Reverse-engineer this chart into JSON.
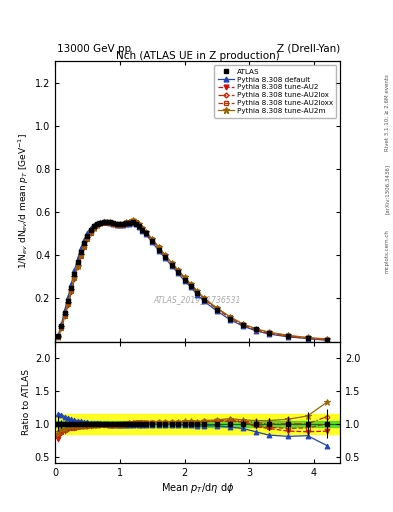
{
  "title_top_left": "13000 GeV pp",
  "title_top_right": "Z (Drell-Yan)",
  "plot_title": "Nch (ATLAS UE in Z production)",
  "xlabel": "Mean $p_{T}$/d$\\eta$ d$\\phi$",
  "ylabel_main": "1/N$_{ev}$ dN$_{ev}$/d mean $p_{T}$ [GeV$^{-1}$]",
  "ylabel_ratio": "Ratio to ATLAS",
  "watermark": "ATLAS_2019_I1736531",
  "right_label_top": "Rivet 3.1.10; ≥ 2.6M events",
  "right_label_mid": "[arXiv:1306.3436]",
  "right_label_bot": "mcplots.cern.ch",
  "xlim": [
    0.0,
    4.4
  ],
  "ylim_main": [
    0.0,
    1.3
  ],
  "ylim_ratio": [
    0.4,
    2.25
  ],
  "ratio_yticks": [
    0.5,
    1.0,
    1.5,
    2.0
  ],
  "main_yticks": [
    0.2,
    0.4,
    0.6,
    0.8,
    1.0,
    1.2
  ],
  "xticks": [
    0,
    1,
    2,
    3,
    4
  ],
  "green_band": 0.05,
  "yellow_band": 0.15,
  "atlas_x": [
    0.05,
    0.1,
    0.15,
    0.2,
    0.25,
    0.3,
    0.35,
    0.4,
    0.45,
    0.5,
    0.55,
    0.6,
    0.65,
    0.7,
    0.75,
    0.8,
    0.85,
    0.9,
    0.95,
    1.0,
    1.05,
    1.1,
    1.15,
    1.2,
    1.25,
    1.3,
    1.35,
    1.4,
    1.5,
    1.6,
    1.7,
    1.8,
    1.9,
    2.0,
    2.1,
    2.2,
    2.3,
    2.5,
    2.7,
    2.9,
    3.1,
    3.3,
    3.6,
    3.9,
    4.2
  ],
  "atlas_y": [
    0.026,
    0.072,
    0.132,
    0.188,
    0.248,
    0.312,
    0.367,
    0.417,
    0.457,
    0.492,
    0.517,
    0.537,
    0.547,
    0.552,
    0.557,
    0.557,
    0.557,
    0.552,
    0.547,
    0.547,
    0.547,
    0.552,
    0.552,
    0.557,
    0.547,
    0.537,
    0.517,
    0.502,
    0.467,
    0.427,
    0.392,
    0.357,
    0.322,
    0.287,
    0.257,
    0.227,
    0.192,
    0.147,
    0.107,
    0.077,
    0.057,
    0.042,
    0.027,
    0.017,
    0.009
  ],
  "atlas_yerr": [
    0.003,
    0.004,
    0.005,
    0.005,
    0.005,
    0.005,
    0.005,
    0.005,
    0.005,
    0.005,
    0.005,
    0.005,
    0.005,
    0.005,
    0.005,
    0.005,
    0.005,
    0.005,
    0.005,
    0.005,
    0.005,
    0.005,
    0.005,
    0.005,
    0.005,
    0.005,
    0.005,
    0.005,
    0.005,
    0.005,
    0.005,
    0.005,
    0.005,
    0.005,
    0.005,
    0.005,
    0.005,
    0.005,
    0.005,
    0.005,
    0.004,
    0.004,
    0.003,
    0.003,
    0.002
  ],
  "series": [
    {
      "label": "Pythia 8.308 default",
      "color": "#2244bb",
      "linestyle": "-",
      "marker": "^",
      "markersize": 3.5,
      "filled": true,
      "x": [
        0.05,
        0.1,
        0.15,
        0.2,
        0.25,
        0.3,
        0.35,
        0.4,
        0.45,
        0.5,
        0.55,
        0.6,
        0.65,
        0.7,
        0.75,
        0.8,
        0.85,
        0.9,
        0.95,
        1.0,
        1.05,
        1.1,
        1.15,
        1.2,
        1.25,
        1.3,
        1.35,
        1.4,
        1.5,
        1.6,
        1.7,
        1.8,
        1.9,
        2.0,
        2.1,
        2.2,
        2.3,
        2.5,
        2.7,
        2.9,
        3.1,
        3.3,
        3.6,
        3.9,
        4.2
      ],
      "y": [
        0.03,
        0.082,
        0.145,
        0.205,
        0.265,
        0.33,
        0.385,
        0.435,
        0.472,
        0.505,
        0.528,
        0.542,
        0.552,
        0.557,
        0.558,
        0.557,
        0.552,
        0.547,
        0.542,
        0.542,
        0.542,
        0.547,
        0.547,
        0.552,
        0.547,
        0.532,
        0.512,
        0.497,
        0.462,
        0.422,
        0.387,
        0.352,
        0.317,
        0.282,
        0.252,
        0.217,
        0.187,
        0.142,
        0.102,
        0.072,
        0.05,
        0.035,
        0.022,
        0.014,
        0.006
      ],
      "ratio": [
        1.15,
        1.14,
        1.11,
        1.09,
        1.07,
        1.06,
        1.05,
        1.04,
        1.03,
        1.03,
        1.02,
        1.01,
        1.01,
        1.01,
        1.0,
        1.0,
        0.99,
        0.99,
        0.99,
        0.99,
        0.99,
        0.99,
        0.99,
        0.99,
        1.0,
        0.99,
        0.99,
        0.99,
        0.99,
        0.99,
        0.99,
        0.99,
        0.98,
        0.98,
        0.98,
        0.96,
        0.97,
        0.97,
        0.95,
        0.93,
        0.88,
        0.83,
        0.81,
        0.82,
        0.67
      ]
    },
    {
      "label": "Pythia 8.308 tune-AU2",
      "color": "#cc1111",
      "linestyle": "--",
      "marker": "v",
      "markersize": 3.5,
      "filled": true,
      "x": [
        0.05,
        0.1,
        0.15,
        0.2,
        0.25,
        0.3,
        0.35,
        0.4,
        0.45,
        0.5,
        0.55,
        0.6,
        0.65,
        0.7,
        0.75,
        0.8,
        0.85,
        0.9,
        0.95,
        1.0,
        1.05,
        1.1,
        1.15,
        1.2,
        1.25,
        1.3,
        1.35,
        1.4,
        1.5,
        1.6,
        1.7,
        1.8,
        1.9,
        2.0,
        2.1,
        2.2,
        2.3,
        2.5,
        2.7,
        2.9,
        3.1,
        3.3,
        3.6,
        3.9,
        4.2
      ],
      "y": [
        0.02,
        0.062,
        0.118,
        0.172,
        0.232,
        0.292,
        0.348,
        0.398,
        0.438,
        0.474,
        0.503,
        0.524,
        0.538,
        0.547,
        0.551,
        0.551,
        0.548,
        0.544,
        0.54,
        0.54,
        0.542,
        0.548,
        0.552,
        0.558,
        0.552,
        0.54,
        0.522,
        0.505,
        0.472,
        0.434,
        0.397,
        0.361,
        0.327,
        0.294,
        0.261,
        0.229,
        0.197,
        0.151,
        0.111,
        0.077,
        0.055,
        0.039,
        0.024,
        0.015,
        0.008
      ],
      "ratio": [
        0.77,
        0.86,
        0.89,
        0.92,
        0.94,
        0.94,
        0.95,
        0.96,
        0.96,
        0.97,
        0.97,
        0.98,
        0.99,
        0.99,
        0.99,
        0.99,
        0.98,
        0.99,
        0.99,
        0.99,
        0.99,
        1.0,
        1.0,
        1.0,
        1.01,
        1.01,
        1.01,
        1.01,
        1.01,
        1.02,
        1.02,
        1.01,
        1.02,
        1.02,
        1.02,
        1.01,
        1.03,
        1.04,
        1.04,
        1.03,
        0.96,
        0.93,
        0.89,
        0.88,
        0.89
      ]
    },
    {
      "label": "Pythia 8.308 tune-AU2lox",
      "color": "#cc2200",
      "linestyle": "-.",
      "marker": "D",
      "markersize": 2.5,
      "filled": false,
      "x": [
        0.05,
        0.1,
        0.15,
        0.2,
        0.25,
        0.3,
        0.35,
        0.4,
        0.45,
        0.5,
        0.55,
        0.6,
        0.65,
        0.7,
        0.75,
        0.8,
        0.85,
        0.9,
        0.95,
        1.0,
        1.05,
        1.1,
        1.15,
        1.2,
        1.25,
        1.3,
        1.35,
        1.4,
        1.5,
        1.6,
        1.7,
        1.8,
        1.9,
        2.0,
        2.1,
        2.2,
        2.3,
        2.5,
        2.7,
        2.9,
        3.1,
        3.3,
        3.6,
        3.9,
        4.2
      ],
      "y": [
        0.022,
        0.064,
        0.12,
        0.175,
        0.235,
        0.295,
        0.351,
        0.401,
        0.441,
        0.477,
        0.506,
        0.527,
        0.541,
        0.55,
        0.554,
        0.554,
        0.551,
        0.547,
        0.543,
        0.543,
        0.545,
        0.551,
        0.555,
        0.561,
        0.555,
        0.543,
        0.525,
        0.508,
        0.475,
        0.437,
        0.4,
        0.364,
        0.33,
        0.297,
        0.264,
        0.232,
        0.2,
        0.154,
        0.114,
        0.08,
        0.058,
        0.042,
        0.027,
        0.017,
        0.01
      ],
      "ratio": [
        0.85,
        0.89,
        0.91,
        0.93,
        0.95,
        0.95,
        0.96,
        0.96,
        0.97,
        0.97,
        0.98,
        0.98,
        0.99,
        1.0,
        1.0,
        1.0,
        0.99,
        0.99,
        0.99,
        0.99,
        1.0,
        1.0,
        1.01,
        1.01,
        1.01,
        1.01,
        1.02,
        1.01,
        1.02,
        1.02,
        1.02,
        1.02,
        1.02,
        1.03,
        1.03,
        1.02,
        1.04,
        1.05,
        1.07,
        1.04,
        1.02,
        1.0,
        1.0,
        1.0,
        1.11
      ]
    },
    {
      "label": "Pythia 8.308 tune-AU2loxx",
      "color": "#bb3300",
      "linestyle": "--",
      "marker": "s",
      "markersize": 2.5,
      "filled": false,
      "x": [
        0.05,
        0.1,
        0.15,
        0.2,
        0.25,
        0.3,
        0.35,
        0.4,
        0.45,
        0.5,
        0.55,
        0.6,
        0.65,
        0.7,
        0.75,
        0.8,
        0.85,
        0.9,
        0.95,
        1.0,
        1.05,
        1.1,
        1.15,
        1.2,
        1.25,
        1.3,
        1.35,
        1.4,
        1.5,
        1.6,
        1.7,
        1.8,
        1.9,
        2.0,
        2.1,
        2.2,
        2.3,
        2.5,
        2.7,
        2.9,
        3.1,
        3.3,
        3.6,
        3.9,
        4.2
      ],
      "y": [
        0.021,
        0.063,
        0.119,
        0.174,
        0.234,
        0.294,
        0.349,
        0.399,
        0.439,
        0.475,
        0.504,
        0.525,
        0.539,
        0.548,
        0.552,
        0.552,
        0.549,
        0.545,
        0.541,
        0.541,
        0.543,
        0.549,
        0.553,
        0.559,
        0.553,
        0.541,
        0.523,
        0.506,
        0.473,
        0.435,
        0.398,
        0.362,
        0.328,
        0.295,
        0.262,
        0.23,
        0.198,
        0.152,
        0.112,
        0.078,
        0.056,
        0.04,
        0.025,
        0.016,
        0.009
      ],
      "ratio": [
        0.81,
        0.88,
        0.9,
        0.93,
        0.94,
        0.94,
        0.95,
        0.96,
        0.96,
        0.97,
        0.98,
        0.98,
        0.99,
        1.0,
        0.99,
        0.99,
        0.99,
        0.99,
        0.99,
        0.99,
        0.99,
        1.0,
        1.0,
        1.0,
        1.01,
        1.01,
        1.01,
        1.01,
        1.01,
        1.02,
        1.02,
        1.02,
        1.02,
        1.03,
        1.02,
        1.01,
        1.03,
        1.05,
        1.05,
        1.03,
        0.98,
        0.95,
        0.93,
        0.94,
        1.0
      ]
    },
    {
      "label": "Pythia 8.308 tune-AU2m",
      "color": "#996600",
      "linestyle": "-",
      "marker": "*",
      "markersize": 4.5,
      "filled": true,
      "x": [
        0.05,
        0.1,
        0.15,
        0.2,
        0.25,
        0.3,
        0.35,
        0.4,
        0.45,
        0.5,
        0.55,
        0.6,
        0.65,
        0.7,
        0.75,
        0.8,
        0.85,
        0.9,
        0.95,
        1.0,
        1.05,
        1.1,
        1.15,
        1.2,
        1.25,
        1.3,
        1.35,
        1.4,
        1.5,
        1.6,
        1.7,
        1.8,
        1.9,
        2.0,
        2.1,
        2.2,
        2.3,
        2.5,
        2.7,
        2.9,
        3.1,
        3.3,
        3.6,
        3.9,
        4.2
      ],
      "y": [
        0.023,
        0.066,
        0.122,
        0.178,
        0.237,
        0.298,
        0.353,
        0.403,
        0.443,
        0.479,
        0.508,
        0.529,
        0.543,
        0.552,
        0.556,
        0.556,
        0.553,
        0.549,
        0.545,
        0.545,
        0.547,
        0.553,
        0.557,
        0.563,
        0.557,
        0.545,
        0.527,
        0.51,
        0.477,
        0.439,
        0.402,
        0.366,
        0.332,
        0.299,
        0.266,
        0.234,
        0.202,
        0.156,
        0.116,
        0.082,
        0.06,
        0.044,
        0.029,
        0.019,
        0.012
      ],
      "ratio": [
        0.88,
        0.92,
        0.92,
        0.95,
        0.96,
        0.96,
        0.96,
        0.97,
        0.97,
        0.98,
        0.98,
        0.99,
        0.99,
        1.0,
        1.0,
        1.0,
        0.99,
        1.0,
        1.0,
        1.0,
        1.0,
        1.0,
        1.01,
        1.01,
        1.02,
        1.02,
        1.02,
        1.02,
        1.02,
        1.03,
        1.03,
        1.03,
        1.03,
        1.04,
        1.04,
        1.03,
        1.05,
        1.06,
        1.08,
        1.06,
        1.05,
        1.05,
        1.07,
        1.12,
        1.33
      ]
    }
  ]
}
